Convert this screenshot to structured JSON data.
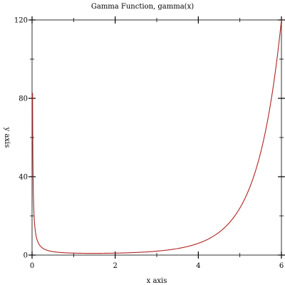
{
  "chart_data": {
    "type": "line",
    "title": "Gamma Function, gamma(x)",
    "xlabel": "x axis",
    "ylabel": "y axis",
    "xlim": [
      0,
      6
    ],
    "ylim": [
      0,
      120
    ],
    "x_ticks": [
      {
        "value": 0,
        "label": "0"
      },
      {
        "value": 2,
        "label": "2"
      },
      {
        "value": 4,
        "label": "4"
      },
      {
        "value": 6,
        "label": "6"
      }
    ],
    "y_ticks": [
      {
        "value": 0,
        "label": "0"
      },
      {
        "value": 40,
        "label": "40"
      },
      {
        "value": 80,
        "label": "80"
      },
      {
        "value": 120,
        "label": "120"
      }
    ],
    "minor_x_ticks": [
      1,
      3,
      5
    ],
    "minor_y_ticks": [
      20,
      60,
      100
    ],
    "grid": false,
    "legend": "none",
    "series": [
      {
        "color": "#b22222",
        "function": "gamma",
        "x": [
          0.012,
          0.02,
          0.05,
          0.1,
          0.2,
          0.3,
          0.5,
          0.75,
          1,
          1.5,
          2,
          2.5,
          3,
          3.5,
          4,
          4.5,
          5,
          5.5,
          6
        ],
        "y": [
          82.8,
          49.4,
          19.47,
          9.51,
          4.59,
          2.99,
          1.77,
          1.23,
          1.0,
          0.886,
          1.0,
          1.33,
          2.0,
          3.32,
          6.0,
          11.63,
          24.0,
          52.34,
          120.0
        ]
      }
    ]
  }
}
